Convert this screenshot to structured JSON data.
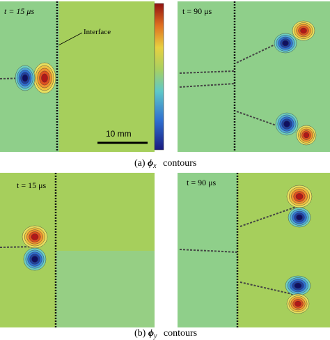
{
  "figure": {
    "panels": [
      {
        "time_label": "t = 15 μs"
      },
      {
        "time_label": "t = 90 μs"
      },
      {
        "time_label": "t = 15 μs"
      },
      {
        "time_label": "t = 90 μs"
      }
    ],
    "interface_label": "Interface",
    "scale_bar": "10 mm",
    "captions": [
      {
        "label": "(a)",
        "symbol": "ϕ",
        "subscript": "x",
        "word": "contours"
      },
      {
        "label": "(b)",
        "symbol": "ϕ",
        "subscript": "y",
        "word": "contours"
      }
    ]
  }
}
